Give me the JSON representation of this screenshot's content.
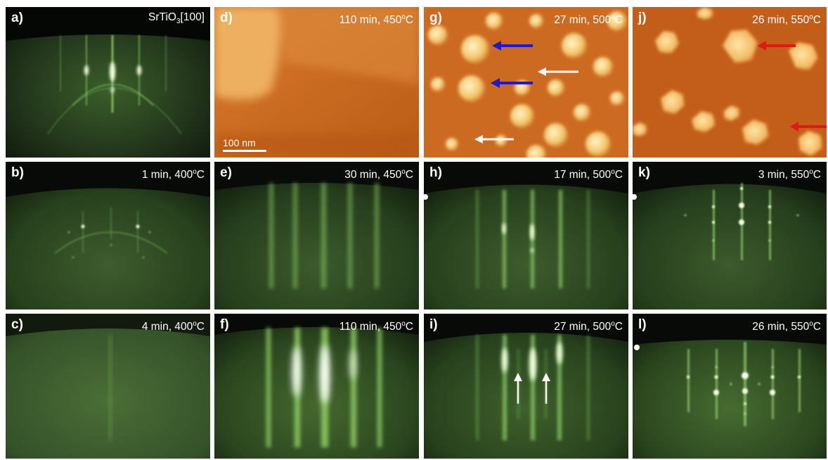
{
  "panels": [
    {
      "id": "a",
      "letter": "a)",
      "condition": "",
      "material": "SrTiO",
      "subscript": "3",
      "orientation": "[100]",
      "type": "rheed"
    },
    {
      "id": "d",
      "letter": "d)",
      "time": "110 min, 450",
      "unit": "C",
      "type": "afm"
    },
    {
      "id": "g",
      "letter": "g)",
      "time": "27 min, 500",
      "unit": "C",
      "type": "afm"
    },
    {
      "id": "j",
      "letter": "j)",
      "time": "26 min, 550",
      "unit": "C",
      "type": "afm"
    },
    {
      "id": "b",
      "letter": "b)",
      "time": "1 min, 400",
      "unit": "C",
      "type": "rheed"
    },
    {
      "id": "e",
      "letter": "e)",
      "time": "30 min, 450",
      "unit": "C",
      "type": "rheed"
    },
    {
      "id": "h",
      "letter": "h)",
      "time": "17 min, 500",
      "unit": "C",
      "type": "rheed"
    },
    {
      "id": "k",
      "letter": "k)",
      "time": "3 min, 550",
      "unit": "C",
      "type": "rheed"
    },
    {
      "id": "c",
      "letter": "c)",
      "time": "4 min, 400",
      "unit": "C",
      "type": "rheed"
    },
    {
      "id": "f",
      "letter": "f)",
      "time": "110 min, 450",
      "unit": "C",
      "type": "rheed"
    },
    {
      "id": "i",
      "letter": "i)",
      "time": "27 min, 500",
      "unit": "C",
      "type": "rheed"
    },
    {
      "id": "l",
      "letter": "l)",
      "time": "26 min, 550",
      "unit": "C",
      "type": "rheed"
    }
  ],
  "degree_symbol": "o",
  "scale_bar": "100 nm",
  "colors": {
    "rheed_bg": "#1a2a16",
    "rheed_streak": "#9ee070",
    "afm_base": "#c8641e",
    "afm_island": "#f7d68a",
    "arrow_blue": "#1a1ad8",
    "arrow_white": "#ffffff",
    "arrow_red": "#e01818"
  }
}
